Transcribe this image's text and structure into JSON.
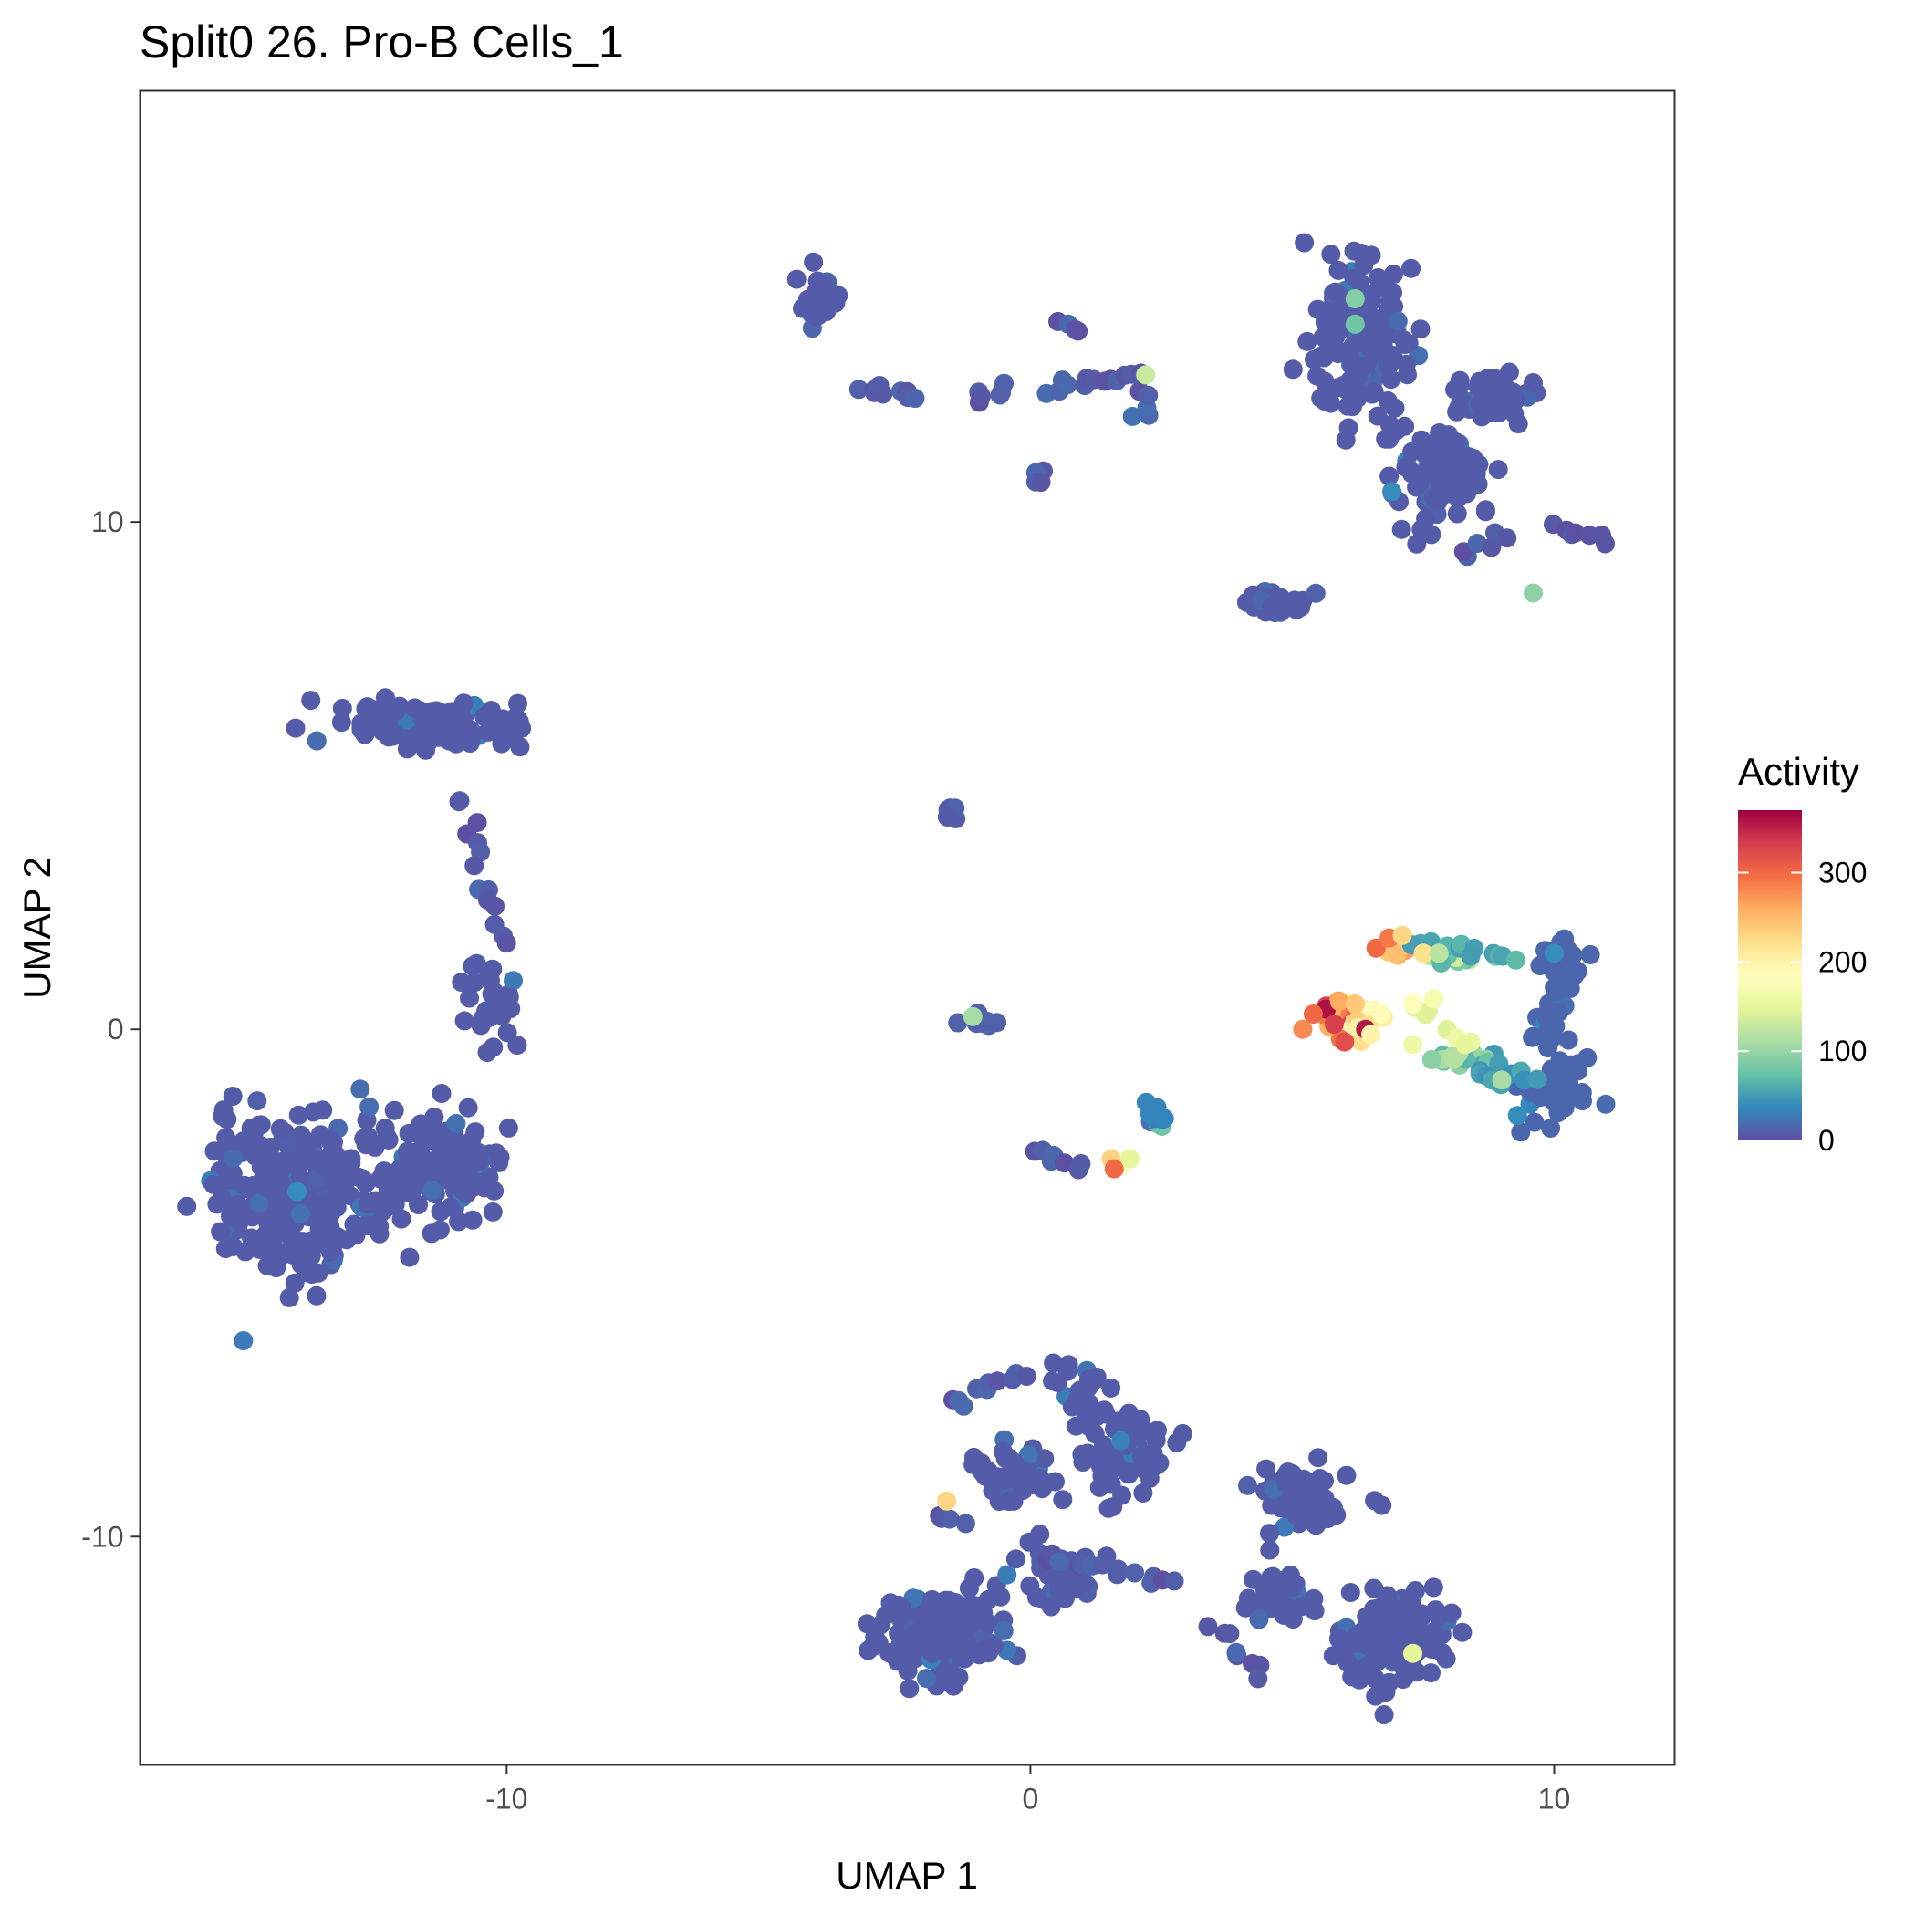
{
  "chart_data": {
    "type": "scatter",
    "title": "Split0 26. Pro-B Cells_1",
    "xlabel": "UMAP 1",
    "ylabel": "UMAP 2",
    "xlim": [
      -17,
      12.3
    ],
    "ylim": [
      -14.5,
      18.5
    ],
    "x_ticks": [
      -10,
      0,
      10
    ],
    "y_ticks": [
      -10,
      0,
      10
    ],
    "x_tick_labels": [
      "-10",
      "0",
      "10"
    ],
    "y_tick_labels": [
      "-10",
      "0",
      "10"
    ],
    "grid": false,
    "legend": {
      "title": "Activity",
      "position": "right",
      "min": 0,
      "max": 370,
      "ticks": [
        0,
        100,
        200,
        300
      ],
      "tick_labels": [
        "0",
        "100",
        "200",
        "300"
      ],
      "palette": [
        "#5E4FA2",
        "#3288BD",
        "#66C2A5",
        "#ABDDA4",
        "#E6F598",
        "#FFFFBF",
        "#FEE08B",
        "#FDAE61",
        "#F46D43",
        "#D53E4F",
        "#9E0142"
      ]
    },
    "clusters": [
      {
        "name": "c1",
        "center": [
          -14,
          -3.2
        ],
        "spread": [
          1.6,
          1.4
        ],
        "n": 260,
        "activity": 8
      },
      {
        "name": "c2",
        "center": [
          -11.2,
          -2.7
        ],
        "spread": [
          0.9,
          0.8
        ],
        "n": 120,
        "activity": 8
      },
      {
        "name": "c3",
        "center": [
          -10.3,
          0.6
        ],
        "spread": [
          0.4,
          0.7
        ],
        "n": 30,
        "activity": 8
      },
      {
        "name": "c4",
        "center": [
          -11.4,
          6.0
        ],
        "spread": [
          1.6,
          0.4
        ],
        "n": 130,
        "activity": 8
      },
      {
        "name": "c5",
        "center": [
          4.7,
          8.4
        ],
        "spread": [
          0.7,
          0.2
        ],
        "n": 40,
        "activity": 8
      },
      {
        "name": "c6",
        "center": [
          6.3,
          13.6
        ],
        "spread": [
          0.8,
          1.4
        ],
        "n": 160,
        "activity": 8
      },
      {
        "name": "c7",
        "center": [
          7.8,
          11.0
        ],
        "spread": [
          0.8,
          0.8
        ],
        "n": 90,
        "activity": 8
      },
      {
        "name": "c8",
        "center": [
          8.9,
          12.5
        ],
        "spread": [
          0.7,
          0.4
        ],
        "n": 60,
        "activity": 8
      },
      {
        "name": "c9",
        "center": [
          -4,
          14.4
        ],
        "spread": [
          0.25,
          0.5
        ],
        "n": 25,
        "activity": 8
      },
      {
        "name": "c10",
        "center": [
          -1.5,
          4.3
        ],
        "spread": [
          0.15,
          0.1
        ],
        "n": 10,
        "activity": 8
      },
      {
        "name": "c11",
        "center": [
          -1.0,
          0.15
        ],
        "spread": [
          0.4,
          0.08
        ],
        "n": 10,
        "activity": 12
      },
      {
        "name": "c12",
        "center": [
          10.2,
          1.4
        ],
        "spread": [
          0.4,
          0.4
        ],
        "n": 40,
        "activity": 15
      },
      {
        "name": "c13",
        "center": [
          10.1,
          -1.1
        ],
        "spread": [
          0.5,
          0.6
        ],
        "n": 50,
        "activity": 15
      },
      {
        "name": "c14",
        "center": [
          9.9,
          0.2
        ],
        "spread": [
          0.2,
          0.6
        ],
        "n": 20,
        "activity": 15
      },
      {
        "name": "c15",
        "center": [
          -1.7,
          -11.9
        ],
        "spread": [
          1.0,
          0.7
        ],
        "n": 160,
        "activity": 8
      },
      {
        "name": "c16",
        "center": [
          6.9,
          -12.0
        ],
        "spread": [
          0.9,
          0.7
        ],
        "n": 150,
        "activity": 8
      },
      {
        "name": "c17",
        "center": [
          1.8,
          -8.3
        ],
        "spread": [
          0.7,
          0.7
        ],
        "n": 70,
        "activity": 8
      },
      {
        "name": "c18",
        "center": [
          5.2,
          -9.2
        ],
        "spread": [
          0.7,
          0.6
        ],
        "n": 60,
        "activity": 8
      },
      {
        "name": "c19",
        "center": [
          -0.5,
          -8.7
        ],
        "spread": [
          0.8,
          0.5
        ],
        "n": 40,
        "activity": 8
      },
      {
        "name": "c20",
        "center": [
          0.5,
          -10.8
        ],
        "spread": [
          0.7,
          0.6
        ],
        "n": 40,
        "activity": 8
      },
      {
        "name": "c21",
        "center": [
          4.7,
          -11.2
        ],
        "spread": [
          0.6,
          0.5
        ],
        "n": 30,
        "activity": 8
      },
      {
        "name": "c22",
        "center": [
          0.9,
          -7.0
        ],
        "spread": [
          0.4,
          0.5
        ],
        "n": 20,
        "activity": 8
      },
      {
        "name": "c23",
        "center": [
          6.1,
          0.2
        ],
        "spread": [
          0.45,
          0.3
        ],
        "n": 30,
        "activity": 200
      },
      {
        "name": "c24",
        "center": [
          5.8,
          0.3
        ],
        "spread": [
          0.3,
          0.25
        ],
        "n": 15,
        "activity": 290
      },
      {
        "name": "c25",
        "center": [
          7.0,
          1.6
        ],
        "spread": [
          0.25,
          0.15
        ],
        "n": 12,
        "activity": 230
      },
      {
        "name": "c26",
        "center": [
          8.0,
          1.5
        ],
        "spread": [
          0.5,
          0.15
        ],
        "n": 14,
        "activity": 100
      },
      {
        "name": "c27",
        "center": [
          8.2,
          -0.6
        ],
        "spread": [
          0.6,
          0.15
        ],
        "n": 22,
        "activity": 80
      },
      {
        "name": "c28",
        "center": [
          1.6,
          -2.6
        ],
        "spread": [
          0.1,
          0.08
        ],
        "n": 4,
        "activity": 200
      },
      {
        "name": "c29",
        "center": [
          2.4,
          -1.8
        ],
        "spread": [
          0.12,
          0.1
        ],
        "n": 6,
        "activity": 40
      }
    ],
    "paths": [
      {
        "from": [
          -10.8,
          4.6
        ],
        "to": [
          -10.1,
          1.6
        ],
        "n": 14,
        "activity": 8
      },
      {
        "from": [
          -3.2,
          12.6
        ],
        "to": [
          -2.1,
          12.5
        ],
        "n": 10,
        "activity": 8
      },
      {
        "from": [
          -1.0,
          12.4
        ],
        "to": [
          -0.5,
          12.5
        ],
        "n": 6,
        "activity": 8
      },
      {
        "from": [
          0.4,
          12.6
        ],
        "to": [
          2.3,
          12.9
        ],
        "n": 14,
        "activity": 8
      },
      {
        "from": [
          2.0,
          12.0
        ],
        "to": [
          2.2,
          12.6
        ],
        "n": 5,
        "activity": 12
      },
      {
        "from": [
          0.1,
          10.9
        ],
        "to": [
          0.3,
          10.8
        ],
        "n": 4,
        "activity": 8
      },
      {
        "from": [
          0.7,
          14.0
        ],
        "to": [
          0.9,
          13.8
        ],
        "n": 4,
        "activity": 8
      },
      {
        "from": [
          10.0,
          9.9
        ],
        "to": [
          11.0,
          9.6
        ],
        "n": 7,
        "activity": 8
      },
      {
        "from": [
          8.3,
          9.3
        ],
        "to": [
          9.1,
          9.8
        ],
        "n": 6,
        "activity": 8
      },
      {
        "from": [
          0.2,
          -2.3
        ],
        "to": [
          0.9,
          -2.8
        ],
        "n": 7,
        "activity": 8
      },
      {
        "from": [
          2.2,
          -1.5
        ],
        "to": [
          2.6,
          -1.7
        ],
        "n": 5,
        "activity": 30
      },
      {
        "from": [
          7.2,
          1.7
        ],
        "to": [
          9.2,
          1.4
        ],
        "n": 14,
        "activity": 60
      },
      {
        "from": [
          8.5,
          -0.9
        ],
        "to": [
          9.6,
          -0.9
        ],
        "n": 10,
        "activity": 50
      },
      {
        "from": [
          7.3,
          0.4
        ],
        "to": [
          8.3,
          -0.2
        ],
        "n": 6,
        "activity": 150
      },
      {
        "from": [
          -1.8,
          -9.6
        ],
        "to": [
          -1.2,
          -9.7
        ],
        "n": 4,
        "activity": 8
      },
      {
        "from": [
          3.5,
          -11.8
        ],
        "to": [
          4.4,
          -12.8
        ],
        "n": 8,
        "activity": 8
      },
      {
        "from": [
          0.2,
          -10.4
        ],
        "to": [
          2.8,
          -10.9
        ],
        "n": 14,
        "activity": 8
      },
      {
        "from": [
          -1.5,
          -7.3
        ],
        "to": [
          -0.1,
          -6.8
        ],
        "n": 10,
        "activity": 8
      }
    ],
    "highlights": [
      {
        "x": 5.65,
        "y": 0.4,
        "value": 360
      },
      {
        "x": 6.4,
        "y": 0.0,
        "value": 355
      },
      {
        "x": 5.8,
        "y": 0.1,
        "value": 330
      },
      {
        "x": 6.0,
        "y": -0.25,
        "value": 320
      },
      {
        "x": 5.4,
        "y": 0.3,
        "value": 300
      },
      {
        "x": 6.6,
        "y": 1.6,
        "value": 300
      },
      {
        "x": 6.85,
        "y": 1.8,
        "value": 290
      },
      {
        "x": 5.2,
        "y": 0.0,
        "value": 280
      },
      {
        "x": 5.9,
        "y": 0.55,
        "value": 260
      },
      {
        "x": 6.2,
        "y": 0.5,
        "value": 240
      },
      {
        "x": 7.1,
        "y": 1.85,
        "value": 230
      },
      {
        "x": 7.5,
        "y": 1.5,
        "value": 220
      },
      {
        "x": 6.5,
        "y": -0.1,
        "value": 200
      },
      {
        "x": 6.7,
        "y": 0.3,
        "value": 190
      },
      {
        "x": 7.3,
        "y": 0.5,
        "value": 180
      },
      {
        "x": 7.7,
        "y": 0.6,
        "value": 170
      },
      {
        "x": 7.3,
        "y": -0.3,
        "value": 160
      },
      {
        "x": 8.3,
        "y": -0.3,
        "value": 150
      },
      {
        "x": 7.8,
        "y": 1.5,
        "value": 120
      },
      {
        "x": 9.0,
        "y": -1.0,
        "value": 110
      },
      {
        "x": 6.2,
        "y": 14.4,
        "value": 90
      },
      {
        "x": 6.2,
        "y": 13.9,
        "value": 80
      },
      {
        "x": 9.6,
        "y": 8.6,
        "value": 95
      },
      {
        "x": 2.2,
        "y": 12.9,
        "value": 130
      },
      {
        "x": 1.6,
        "y": -2.75,
        "value": 300
      },
      {
        "x": 1.9,
        "y": -2.55,
        "value": 150
      },
      {
        "x": -1.6,
        "y": -9.3,
        "value": 230
      },
      {
        "x": 7.3,
        "y": -12.3,
        "value": 150
      },
      {
        "x": -1.1,
        "y": 0.25,
        "value": 110
      },
      {
        "x": -14.0,
        "y": -3.2,
        "value": 40
      },
      {
        "x": 6.9,
        "y": 10.6,
        "value": 40
      },
      {
        "x": 10.0,
        "y": 1.5,
        "value": 40
      },
      {
        "x": 9.3,
        "y": -1.7,
        "value": 40
      }
    ]
  }
}
